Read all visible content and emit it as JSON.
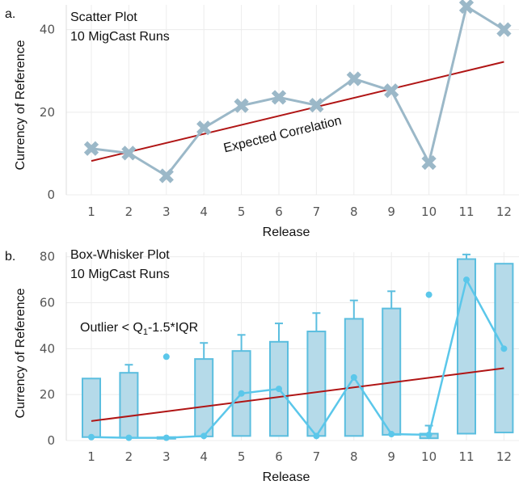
{
  "chart_data": [
    {
      "type": "scatter",
      "panel_label": "a.",
      "title": "Scatter Plot",
      "subtitle": "10 MigCast Runs",
      "xlabel": "Release",
      "ylabel": "Currency of Reference",
      "categories": [
        "1",
        "2",
        "3",
        "4",
        "5",
        "6",
        "7",
        "8",
        "9",
        "10",
        "11",
        "12"
      ],
      "ylim": [
        0,
        46
      ],
      "yticks": [
        "0",
        "20",
        "40"
      ],
      "series": [
        {
          "values": [
            11.2,
            10.1,
            4.6,
            16.2,
            21.6,
            23.6,
            21.7,
            28.1,
            25.2,
            7.8,
            45.6,
            40.0
          ]
        }
      ],
      "trend": {
        "label": "Expected Correlation",
        "start": 8.2,
        "end": 32.2
      },
      "grid": true,
      "colors": {
        "series": "#9bb8c8",
        "trend": "#b01515"
      }
    },
    {
      "type": "box",
      "panel_label": "b.",
      "title": "Box-Whisker Plot",
      "subtitle": "10 MigCast Runs",
      "xlabel": "Release",
      "ylabel": "Currency of Reference",
      "categories": [
        "1",
        "2",
        "3",
        "4",
        "5",
        "6",
        "7",
        "8",
        "9",
        "10",
        "11",
        "12"
      ],
      "ylim": [
        0,
        82
      ],
      "yticks": [
        "0",
        "20",
        "40",
        "60",
        "80"
      ],
      "annotation": {
        "prefix": "Outlier < Q",
        "sub": "1",
        "suffix": "-1.5*IQR"
      },
      "boxes": [
        {
          "q1": 1.5,
          "q3": 27.0,
          "median": 1.5,
          "whisker_high": 27.0,
          "outliers": []
        },
        {
          "q1": 1.2,
          "q3": 29.5,
          "median": 1.2,
          "whisker_high": 33.0,
          "outliers": []
        },
        {
          "q1": 1.0,
          "q3": 1.5,
          "median": 1.2,
          "whisker_high": 1.5,
          "outliers": [
            36.5
          ]
        },
        {
          "q1": 1.8,
          "q3": 35.5,
          "median": 2.0,
          "whisker_high": 42.5,
          "outliers": []
        },
        {
          "q1": 2.0,
          "q3": 39.0,
          "median": 20.5,
          "whisker_high": 46.0,
          "outliers": []
        },
        {
          "q1": 2.0,
          "q3": 43.0,
          "median": 22.5,
          "whisker_high": 51.0,
          "outliers": []
        },
        {
          "q1": 2.0,
          "q3": 47.5,
          "median": 2.0,
          "whisker_high": 55.5,
          "outliers": []
        },
        {
          "q1": 2.0,
          "q3": 53.0,
          "median": 27.5,
          "whisker_high": 61.0,
          "outliers": []
        },
        {
          "q1": 2.5,
          "q3": 57.5,
          "median": 2.8,
          "whisker_high": 65.0,
          "outliers": []
        },
        {
          "q1": 1.0,
          "q3": 3.0,
          "median": 2.5,
          "whisker_high": 6.5,
          "outliers": [
            63.5
          ]
        },
        {
          "q1": 3.0,
          "q3": 79.0,
          "median": 70.0,
          "whisker_high": 81.0,
          "outliers": []
        },
        {
          "q1": 3.5,
          "q3": 77.0,
          "median": 40.0,
          "whisker_high": 77.0,
          "outliers": []
        }
      ],
      "trend": {
        "start": 8.5,
        "end": 31.5
      },
      "grid": true,
      "colors": {
        "box_fill": "#b5dae9",
        "box_stroke": "#5bbedf",
        "median_line": "#5bc7ea",
        "trend": "#b01515"
      }
    }
  ]
}
